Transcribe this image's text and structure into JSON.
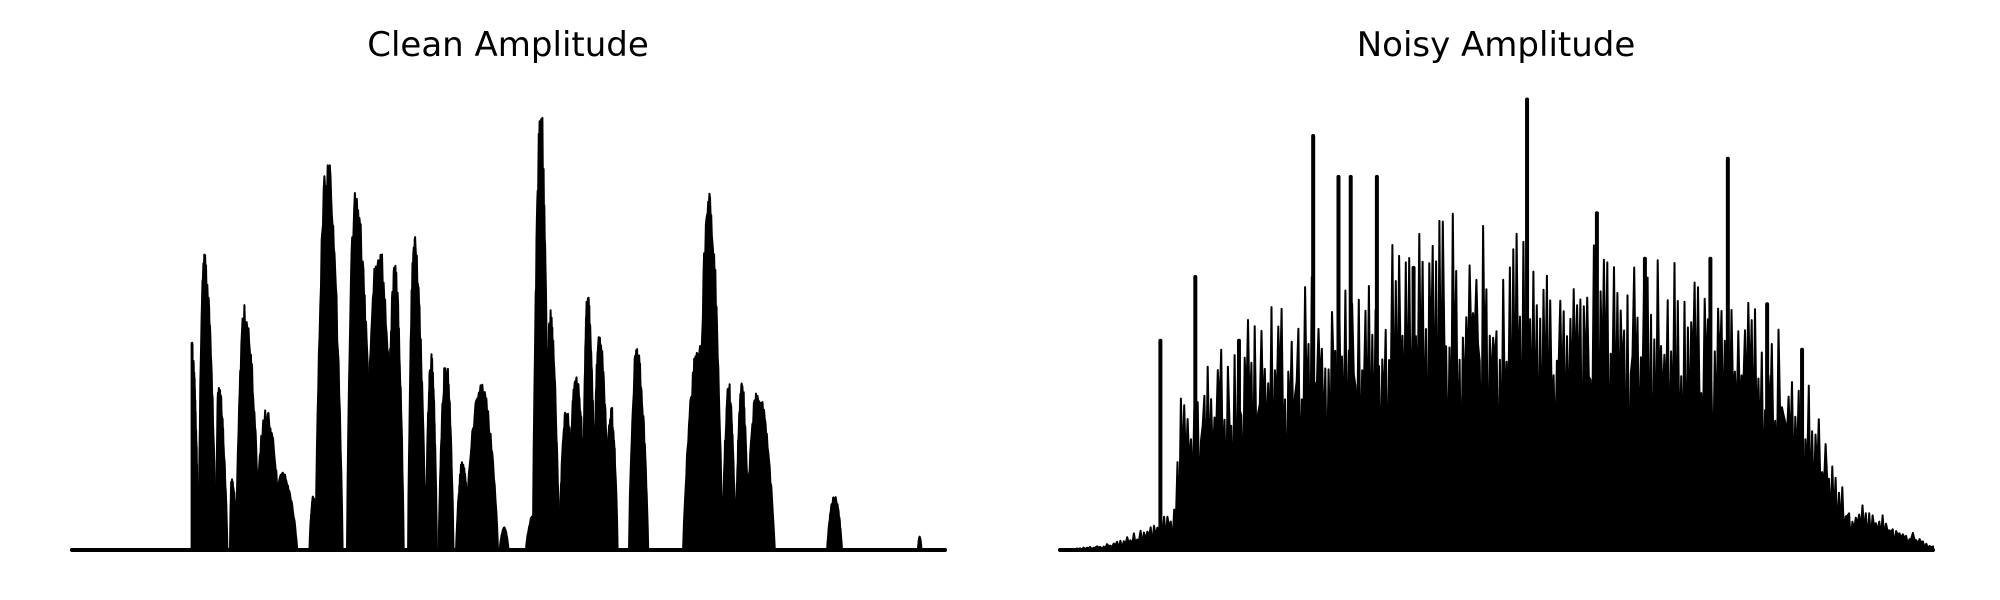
{
  "chart_data": [
    {
      "type": "area",
      "title": "Clean Amplitude",
      "xlabel": "",
      "ylabel": "",
      "ylim": [
        0,
        1
      ],
      "xlim": [
        0,
        1
      ],
      "axes_visible": false,
      "grid": false,
      "color": "#000000",
      "bursts": [
        {
          "start": 0.137,
          "end": 0.145,
          "peak": 0.46,
          "at": 0.0
        },
        {
          "start": 0.145,
          "end": 0.165,
          "peak": 0.66,
          "at": 0.3
        },
        {
          "start": 0.165,
          "end": 0.178,
          "peak": 0.37,
          "at": 0.2
        },
        {
          "start": 0.181,
          "end": 0.19,
          "peak": 0.16,
          "at": 0.2
        },
        {
          "start": 0.188,
          "end": 0.215,
          "peak": 0.54,
          "at": 0.35
        },
        {
          "start": 0.21,
          "end": 0.24,
          "peak": 0.31,
          "at": 0.4
        },
        {
          "start": 0.225,
          "end": 0.258,
          "peak": 0.17,
          "at": 0.5
        },
        {
          "start": 0.272,
          "end": 0.283,
          "peak": 0.12,
          "at": 0.4
        },
        {
          "start": 0.279,
          "end": 0.31,
          "peak": 0.88,
          "at": 0.42
        },
        {
          "start": 0.315,
          "end": 0.345,
          "peak": 0.8,
          "at": 0.3
        },
        {
          "start": 0.335,
          "end": 0.37,
          "peak": 0.69,
          "at": 0.45
        },
        {
          "start": 0.36,
          "end": 0.38,
          "peak": 0.63,
          "at": 0.5
        },
        {
          "start": 0.385,
          "end": 0.405,
          "peak": 0.7,
          "at": 0.35
        },
        {
          "start": 0.405,
          "end": 0.418,
          "peak": 0.44,
          "at": 0.5
        },
        {
          "start": 0.42,
          "end": 0.437,
          "peak": 0.43,
          "at": 0.5
        },
        {
          "start": 0.44,
          "end": 0.455,
          "peak": 0.2,
          "at": 0.5
        },
        {
          "start": 0.45,
          "end": 0.488,
          "peak": 0.37,
          "at": 0.5
        },
        {
          "start": 0.49,
          "end": 0.5,
          "peak": 0.05,
          "at": 0.5
        },
        {
          "start": 0.52,
          "end": 0.537,
          "peak": 0.08,
          "at": 0.5
        },
        {
          "start": 0.528,
          "end": 0.546,
          "peak": 0.99,
          "at": 0.5
        },
        {
          "start": 0.543,
          "end": 0.558,
          "peak": 0.53,
          "at": 0.3
        },
        {
          "start": 0.558,
          "end": 0.575,
          "peak": 0.32,
          "at": 0.5
        },
        {
          "start": 0.568,
          "end": 0.59,
          "peak": 0.39,
          "at": 0.4
        },
        {
          "start": 0.585,
          "end": 0.6,
          "peak": 0.57,
          "at": 0.35
        },
        {
          "start": 0.597,
          "end": 0.615,
          "peak": 0.5,
          "at": 0.4
        },
        {
          "start": 0.61,
          "end": 0.625,
          "peak": 0.32,
          "at": 0.5
        },
        {
          "start": 0.638,
          "end": 0.66,
          "peak": 0.45,
          "at": 0.4
        },
        {
          "start": 0.7,
          "end": 0.73,
          "peak": 0.46,
          "at": 0.6
        },
        {
          "start": 0.718,
          "end": 0.745,
          "peak": 0.82,
          "at": 0.4
        },
        {
          "start": 0.745,
          "end": 0.76,
          "peak": 0.37,
          "at": 0.5
        },
        {
          "start": 0.76,
          "end": 0.775,
          "peak": 0.37,
          "at": 0.5
        },
        {
          "start": 0.772,
          "end": 0.805,
          "peak": 0.36,
          "at": 0.4
        },
        {
          "start": 0.865,
          "end": 0.882,
          "peak": 0.12,
          "at": 0.5
        },
        {
          "start": 0.969,
          "end": 0.973,
          "peak": 0.03,
          "at": 0.5
        }
      ]
    },
    {
      "type": "area",
      "title": "Noisy Amplitude",
      "xlabel": "",
      "ylabel": "",
      "ylim": [
        0,
        1
      ],
      "xlim": [
        0,
        1
      ],
      "axes_visible": false,
      "grid": false,
      "color": "#000000",
      "envelope": [
        {
          "x": 0.0,
          "y": 0.0
        },
        {
          "x": 0.05,
          "y": 0.01
        },
        {
          "x": 0.1,
          "y": 0.05
        },
        {
          "x": 0.13,
          "y": 0.09
        },
        {
          "x": 0.14,
          "y": 0.38
        },
        {
          "x": 0.2,
          "y": 0.5
        },
        {
          "x": 0.3,
          "y": 0.62
        },
        {
          "x": 0.45,
          "y": 0.75
        },
        {
          "x": 0.55,
          "y": 0.7
        },
        {
          "x": 0.65,
          "y": 0.66
        },
        {
          "x": 0.75,
          "y": 0.62
        },
        {
          "x": 0.85,
          "y": 0.44
        },
        {
          "x": 0.9,
          "y": 0.12
        },
        {
          "x": 0.95,
          "y": 0.07
        },
        {
          "x": 1.0,
          "y": 0.01
        }
      ],
      "spikes": [
        {
          "x": 0.115,
          "y": 0.46
        },
        {
          "x": 0.155,
          "y": 0.6
        },
        {
          "x": 0.205,
          "y": 0.46
        },
        {
          "x": 0.29,
          "y": 0.91
        },
        {
          "x": 0.319,
          "y": 0.82
        },
        {
          "x": 0.333,
          "y": 0.82
        },
        {
          "x": 0.363,
          "y": 0.82
        },
        {
          "x": 0.405,
          "y": 0.62
        },
        {
          "x": 0.535,
          "y": 0.99
        },
        {
          "x": 0.615,
          "y": 0.74
        },
        {
          "x": 0.67,
          "y": 0.64
        },
        {
          "x": 0.745,
          "y": 0.64
        },
        {
          "x": 0.765,
          "y": 0.86
        },
        {
          "x": 0.81,
          "y": 0.54
        },
        {
          "x": 0.85,
          "y": 0.44
        }
      ]
    }
  ]
}
